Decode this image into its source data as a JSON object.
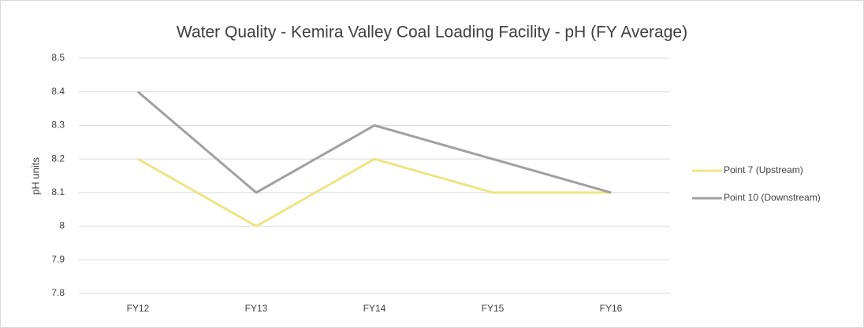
{
  "chart_data": {
    "type": "line",
    "title": "Water Quality - Kemira Valley Coal Loading Facility - pH (FY Average)",
    "y_label": "pH units",
    "categories": [
      "FY12",
      "FY13",
      "FY14",
      "FY15",
      "FY16"
    ],
    "series": [
      {
        "name": "Point 7 (Upstream)",
        "color": "#ede584",
        "values": [
          8.2,
          8.0,
          8.2,
          8.1,
          8.1
        ]
      },
      {
        "name": "Point 10 (Downstream)",
        "color": "#a0a0a0",
        "values": [
          8.4,
          8.1,
          8.3,
          8.2,
          8.1
        ]
      }
    ],
    "ylim": [
      7.8,
      8.5
    ],
    "yticks": [
      7.8,
      7.9,
      8,
      8.1,
      8.2,
      8.3,
      8.4,
      8.5
    ],
    "grid": true,
    "legend": "right"
  }
}
